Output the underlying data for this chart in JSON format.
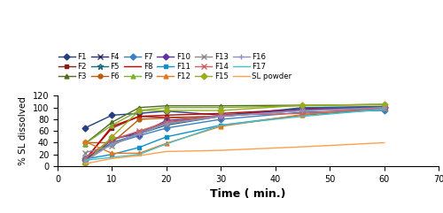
{
  "time_points": [
    5,
    10,
    15,
    20,
    30,
    45,
    60
  ],
  "series": [
    {
      "name": "F1",
      "color": "#243F7F",
      "marker": "D",
      "markersize": 3.5,
      "values": [
        65,
        87,
        90,
        94,
        87,
        98,
        101
      ]
    },
    {
      "name": "F2",
      "color": "#8B1A1A",
      "marker": "s",
      "markersize": 3.5,
      "values": [
        11,
        65,
        85,
        83,
        85,
        97,
        99
      ]
    },
    {
      "name": "F3",
      "color": "#4E6B1F",
      "marker": "^",
      "markersize": 3.5,
      "values": [
        38,
        75,
        100,
        103,
        103,
        104,
        105
      ]
    },
    {
      "name": "F4",
      "color": "#2B2B6B",
      "marker": "x",
      "markersize": 4.5,
      "values": [
        8,
        45,
        58,
        75,
        85,
        95,
        100
      ]
    },
    {
      "name": "F5",
      "color": "#1A6B7A",
      "marker": "*",
      "markersize": 5,
      "values": [
        12,
        40,
        55,
        70,
        85,
        100,
        102
      ]
    },
    {
      "name": "F6",
      "color": "#B85C10",
      "marker": "o",
      "markersize": 3.5,
      "values": [
        40,
        40,
        80,
        82,
        85,
        97,
        100
      ]
    },
    {
      "name": "F7",
      "color": "#3A7EC2",
      "marker": "D",
      "markersize": 3.5,
      "values": [
        13,
        38,
        52,
        65,
        80,
        92,
        95
      ]
    },
    {
      "name": "F8",
      "color": "#C00000",
      "marker": "None",
      "markersize": 0,
      "values": [
        10,
        68,
        85,
        87,
        90,
        97,
        99
      ]
    },
    {
      "name": "F9",
      "color": "#80B030",
      "marker": "^",
      "markersize": 3.5,
      "values": [
        38,
        70,
        95,
        100,
        100,
        103,
        106
      ]
    },
    {
      "name": "F10",
      "color": "#6030A0",
      "marker": "D",
      "markersize": 3.5,
      "values": [
        10,
        47,
        55,
        78,
        85,
        98,
        100
      ]
    },
    {
      "name": "F11",
      "color": "#1090C8",
      "marker": "s",
      "markersize": 3.5,
      "values": [
        12,
        20,
        32,
        50,
        70,
        87,
        97
      ]
    },
    {
      "name": "F12",
      "color": "#E07820",
      "marker": "^",
      "markersize": 3.5,
      "values": [
        42,
        22,
        22,
        39,
        68,
        88,
        100
      ]
    },
    {
      "name": "F13",
      "color": "#888888",
      "marker": "x",
      "markersize": 5,
      "values": [
        23,
        35,
        58,
        73,
        85,
        95,
        98
      ]
    },
    {
      "name": "F14",
      "color": "#D06060",
      "marker": "x",
      "markersize": 5,
      "values": [
        14,
        45,
        60,
        75,
        87,
        90,
        99
      ]
    },
    {
      "name": "F15",
      "color": "#9AAB20",
      "marker": "D",
      "markersize": 3.5,
      "values": [
        5,
        50,
        95,
        95,
        95,
        104,
        105
      ]
    },
    {
      "name": "F16",
      "color": "#9090C0",
      "marker": "+",
      "markersize": 5,
      "values": [
        8,
        38,
        55,
        72,
        85,
        95,
        100
      ]
    },
    {
      "name": "F17",
      "color": "#48C0C8",
      "marker": "None",
      "markersize": 0,
      "values": [
        10,
        15,
        20,
        38,
        70,
        85,
        97
      ]
    },
    {
      "name": "SL powder",
      "color": "#FFA050",
      "marker": "None",
      "markersize": 0,
      "values": [
        4,
        13,
        18,
        25,
        27,
        33,
        40
      ]
    }
  ],
  "xlabel": "Time ( min.)",
  "ylabel": "% SL dissolved",
  "xlim": [
    0,
    70
  ],
  "ylim": [
    0,
    120
  ],
  "xticks": [
    0,
    10,
    20,
    30,
    40,
    50,
    60,
    70
  ],
  "yticks": [
    0,
    20,
    40,
    60,
    80,
    100,
    120
  ],
  "linewidth": 1.0
}
